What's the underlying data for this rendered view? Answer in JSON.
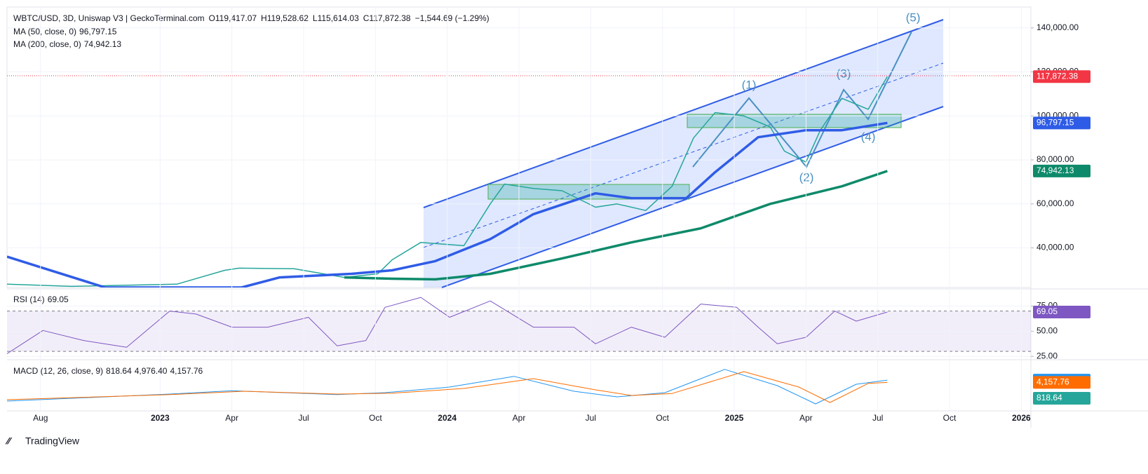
{
  "header": {
    "symbol": "WBTC/USD, 3D, Uniswap V3 | GeckoTerminal.com",
    "ohlc": [
      {
        "key": "O",
        "value": "119,417.07"
      },
      {
        "key": "H",
        "value": "119,528.62"
      },
      {
        "key": "L",
        "value": "115,614.03"
      },
      {
        "key": "C",
        "value": "117,872.38"
      }
    ],
    "change": "−1,544.69 (−1.29%)"
  },
  "chart_data": [
    {
      "type": "line",
      "xlim": [
        -1.4,
        41.4
      ],
      "ylim": [
        22000,
        149500
      ],
      "yticks": [
        {
          "value": 40000,
          "label": "40,000.00"
        },
        {
          "value": 60000,
          "label": "60,000.00"
        },
        {
          "value": 80000,
          "label": "80,000.00"
        },
        {
          "value": 100000,
          "label": "100,000.00"
        },
        {
          "value": 120000,
          "label": "120,000.00"
        },
        {
          "value": 140000,
          "label": "140,000.00"
        }
      ],
      "series": [
        {
          "name": "WBTC/USD",
          "color": "#26a69a",
          "width": 1.5,
          "last_label": "117,872.38",
          "tag_color": "#f23645",
          "x": [
            -1.4,
            1.3,
            5.7,
            7.7,
            8.3,
            10.6,
            12.7,
            14.1,
            14.7,
            15.9,
            17.7,
            18.8,
            19.4,
            20.6,
            21.8,
            23.2,
            24.1,
            25.3,
            26.4,
            27.3,
            28.2,
            29.4,
            30.5,
            31.1,
            32.0,
            32.6,
            33.5,
            34.6,
            35.4
          ],
          "values": [
            23500,
            22500,
            23500,
            29800,
            30800,
            30500,
            26600,
            28200,
            34600,
            42500,
            41000,
            60000,
            69000,
            67000,
            66000,
            58500,
            60000,
            57000,
            68000,
            90000,
            101500,
            100000,
            95000,
            84000,
            79000,
            93500,
            108000,
            103000,
            117872.38
          ]
        },
        {
          "name": "MA (50, close, 0)",
          "color": "#2f5ce6",
          "width": 3.5,
          "last_label": "96,797.15",
          "tag_color": "#2f5ce6",
          "x": [
            -1.4,
            2.7,
            8.4,
            10.0,
            13.0,
            14.7,
            16.5,
            18.8,
            20.6,
            23.2,
            24.7,
            27.0,
            28.2,
            30.0,
            32.0,
            33.5,
            35.4
          ],
          "values": [
            36000,
            22000,
            22000,
            26600,
            28200,
            29800,
            34000,
            44000,
            55300,
            64800,
            62600,
            62600,
            74400,
            90300,
            93500,
            93500,
            96797.15
          ]
        },
        {
          "name": "MA (200, close, 0)",
          "color": "#0e8a6a",
          "width": 3.5,
          "last_label": "74,942.13",
          "tag_color": "#0e8a6a",
          "x": [
            12.7,
            14.7,
            16.5,
            18.8,
            21.8,
            24.7,
            27.6,
            30.5,
            33.5,
            35.4
          ],
          "values": [
            26600,
            26000,
            25700,
            28200,
            35200,
            42500,
            48900,
            60000,
            68000,
            74942.13
          ]
        }
      ],
      "annotations": [
        "(1)",
        "(2)",
        "(3)",
        "(4)",
        "(5)"
      ]
    },
    {
      "type": "line",
      "title": "RSI (14)",
      "xlim": [
        -1.4,
        41.4
      ],
      "ylim": [
        22.4,
        92
      ],
      "yticks": [
        {
          "value": 25,
          "label": "25.00"
        },
        {
          "value": 50,
          "label": "50.00"
        },
        {
          "value": 75,
          "label": "75.00"
        }
      ],
      "band": [
        30,
        70
      ],
      "series": [
        {
          "name": "RSI",
          "color": "#7e57c2",
          "width": 1,
          "last_label": "69.05",
          "tag_color": "#7e57c2",
          "x": [
            -1.4,
            0.1,
            1.8,
            3.6,
            5.4,
            6.5,
            8.0,
            9.5,
            11.2,
            12.4,
            13.6,
            14.4,
            15.9,
            17.1,
            18.8,
            20.6,
            22.3,
            23.2,
            24.7,
            26.1,
            27.6,
            29.1,
            30.0,
            30.8,
            32.0,
            33.2,
            34.1,
            35.4
          ],
          "values": [
            27.6,
            50.7,
            40.8,
            34,
            70,
            67,
            54,
            54,
            63.8,
            35.5,
            40.8,
            73.7,
            83.6,
            63.8,
            80,
            54,
            54,
            37.5,
            54,
            44,
            77,
            73.7,
            54,
            37.5,
            44,
            70,
            60,
            69.05
          ]
        }
      ]
    },
    {
      "type": "line",
      "title": "MACD (12, 26, close, 9)",
      "xlim": [
        -1.4,
        41.4
      ],
      "ylim": [
        -6000,
        12000
      ],
      "xticks": [
        {
          "value": 0,
          "label": "Aug"
        },
        {
          "value": 5,
          "label": "2023"
        },
        {
          "value": 8,
          "label": "Apr"
        },
        {
          "value": 11,
          "label": "Jul"
        },
        {
          "value": 14,
          "label": "Oct"
        },
        {
          "value": 17,
          "label": "2024"
        },
        {
          "value": 20,
          "label": "Apr"
        },
        {
          "value": 23,
          "label": "Jul"
        },
        {
          "value": 26,
          "label": "Oct"
        },
        {
          "value": 29,
          "label": "2025"
        },
        {
          "value": 32,
          "label": "Apr"
        },
        {
          "value": 35,
          "label": "Jul"
        },
        {
          "value": 38,
          "label": "Oct"
        },
        {
          "value": 41,
          "label": "2026"
        }
      ],
      "histogram_label": "818.64",
      "histogram_color": "#26a69a",
      "series": [
        {
          "name": "MACD",
          "color": "#2196f3",
          "width": 1,
          "last_label": "4,976.40",
          "tag_color": "#2196f3",
          "x": [
            -1.4,
            5.4,
            8.0,
            12.4,
            14.4,
            17.1,
            19.8,
            22.3,
            24.1,
            26.1,
            28.6,
            30.8,
            32.4,
            34.1,
            35.4
          ],
          "values": [
            -2500,
            0,
            1200,
            -200,
            500,
            2500,
            6300,
            1000,
            -1000,
            500,
            8800,
            3000,
            -3500,
            3500,
            4976.4
          ]
        },
        {
          "name": "Signal",
          "color": "#ff6d00",
          "width": 1,
          "last_label": "4,157.76",
          "tag_color": "#ff6d00",
          "x": [
            -1.4,
            5.4,
            8.5,
            12.4,
            14.7,
            17.7,
            20.6,
            23.2,
            24.7,
            26.4,
            29.4,
            31.7,
            33.0,
            34.6,
            35.4
          ],
          "values": [
            -2000,
            -200,
            1000,
            0,
            300,
            2000,
            5500,
            1500,
            -500,
            200,
            8000,
            2500,
            -3000,
            3800,
            4157.76
          ]
        }
      ]
    }
  ],
  "footer": "TradingView"
}
